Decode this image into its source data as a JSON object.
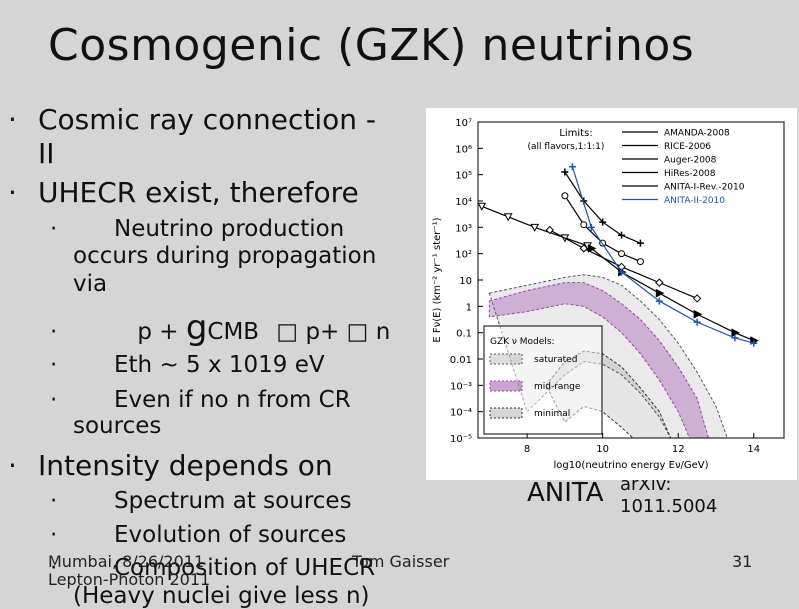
{
  "slide": {
    "title": "Cosmogenic (GZK) neutrinos",
    "bullets": [
      {
        "marker": "·",
        "text": "Cosmic ray connection -",
        "text_cont": "II"
      },
      {
        "marker": "·",
        "text": "UHECR exist, therefore"
      },
      {
        "marker": "·",
        "text": "Intensity depends on"
      }
    ],
    "sub_unhecr": [
      {
        "marker": "·",
        "text": "Neutrino production",
        "text_cont1": "occurs during propagation",
        "text_cont2": "via"
      },
      {
        "marker": "·",
        "text_a": "p + ",
        "text_big": "g",
        "text_b": "CMB",
        "text_c": "p+",
        "text_d": "n",
        "glyph": "□"
      },
      {
        "marker": "·",
        "text": "Eth ~ 5 x 1019 eV"
      },
      {
        "marker": "·",
        "text": "Even if no n from CR",
        "text_cont": "sources"
      }
    ],
    "sub_intensity": [
      {
        "marker": "·",
        "text": "Spectrum at sources"
      },
      {
        "marker": "·",
        "text": "Evolution of sources"
      },
      {
        "marker": "·",
        "text": "Composition of UHECR"
      },
      {
        "text": "(Heavy nuclei give less n)"
      }
    ],
    "footer": {
      "left_line1": "Mumbai, 8/26/2011",
      "left_line2": "Lepton-Photon 2011",
      "center": "Tom Gaisser",
      "page": "31"
    },
    "anita_label": "ANITA",
    "arxiv_line1": "arXiv:",
    "arxiv_line2": "1011.5004"
  },
  "chart_data": {
    "type": "line",
    "xlabel": "log10(neutrino energy Eν/GeV)",
    "ylabel": "E Fν(E)  (km⁻² yr⁻¹ ster⁻¹)",
    "xlim": [
      6.7,
      14.8
    ],
    "ylim_log10": [
      -5,
      7
    ],
    "x_ticks": [
      8,
      10,
      12,
      14
    ],
    "y_ticks": [
      "10⁻⁵",
      "10⁻⁴",
      "10⁻³",
      "0.01",
      "0.1",
      "1",
      "10",
      "10²",
      "10³",
      "10⁴",
      "10⁵",
      "10⁶",
      "10⁷"
    ],
    "limits_title": "Limits:",
    "limits_subtitle": "(all flavors,1:1:1)",
    "series": [
      {
        "name": "AMANDA-2008",
        "color": "#000000",
        "marker": "tri",
        "points": [
          [
            6.8,
            3.8
          ],
          [
            7.5,
            3.4
          ],
          [
            8.2,
            3.0
          ],
          [
            9.0,
            2.6
          ],
          [
            9.6,
            2.3
          ]
        ]
      },
      {
        "name": "RICE-2006",
        "color": "#000000",
        "marker": "circle",
        "points": [
          [
            9.0,
            4.2
          ],
          [
            9.5,
            3.1
          ],
          [
            10.0,
            2.4
          ],
          [
            10.5,
            2.0
          ],
          [
            11.0,
            1.7
          ]
        ]
      },
      {
        "name": "Auger-2008",
        "color": "#000000",
        "marker": "star",
        "points": [
          [
            9.0,
            5.1
          ],
          [
            9.5,
            4.0
          ],
          [
            10.0,
            3.2
          ],
          [
            10.5,
            2.7
          ],
          [
            11.0,
            2.4
          ]
        ]
      },
      {
        "name": "HiRes-2008",
        "color": "#000000",
        "marker": "diamond",
        "points": [
          [
            8.6,
            2.9
          ],
          [
            9.5,
            2.2
          ],
          [
            10.5,
            1.5
          ],
          [
            11.5,
            0.9
          ],
          [
            12.5,
            0.3
          ]
        ]
      },
      {
        "name": "ANITA-I-Rev.-2010",
        "color": "#000000",
        "marker": "filled-tri",
        "points": [
          [
            9.7,
            2.2
          ],
          [
            10.5,
            1.3
          ],
          [
            11.5,
            0.5
          ],
          [
            12.5,
            -0.3
          ],
          [
            13.5,
            -1.0
          ],
          [
            14.0,
            -1.3
          ]
        ]
      },
      {
        "name": "ANITA-II-2010",
        "color": "#2255aa",
        "marker": "star",
        "points": [
          [
            9.2,
            5.3
          ],
          [
            9.7,
            3.0
          ],
          [
            10.5,
            1.3
          ],
          [
            11.5,
            0.2
          ],
          [
            12.5,
            -0.6
          ],
          [
            13.5,
            -1.2
          ],
          [
            14.0,
            -1.4
          ]
        ]
      }
    ],
    "models_title": "GZK ν Models:",
    "models": [
      "saturated",
      "mid-range",
      "minimal"
    ],
    "bands": [
      {
        "name": "saturated",
        "color": "#555555",
        "upper": [
          [
            7,
            0.5
          ],
          [
            8,
            0.8
          ],
          [
            9,
            1.1
          ],
          [
            9.5,
            1.2
          ],
          [
            10,
            1.1
          ],
          [
            10.5,
            0.8
          ],
          [
            11,
            0.2
          ],
          [
            11.5,
            -0.5
          ],
          [
            12,
            -1.4
          ],
          [
            12.5,
            -2.5
          ],
          [
            13,
            -3.8
          ],
          [
            13.3,
            -5
          ]
        ],
        "lower": [
          [
            8,
            -4
          ],
          [
            9,
            -2.6
          ],
          [
            9.5,
            -2.1
          ],
          [
            10,
            -2.2
          ],
          [
            10.5,
            -2.6
          ],
          [
            11,
            -3.3
          ],
          [
            11.5,
            -4.2
          ],
          [
            11.8,
            -5
          ]
        ]
      },
      {
        "name": "mid-range",
        "color": "#9944aa",
        "upper": [
          [
            7,
            0.2
          ],
          [
            8,
            0.6
          ],
          [
            9,
            0.9
          ],
          [
            9.5,
            0.9
          ],
          [
            10,
            0.6
          ],
          [
            10.5,
            0.1
          ],
          [
            11,
            -0.5
          ],
          [
            11.5,
            -1.3
          ],
          [
            12,
            -2.3
          ],
          [
            12.5,
            -3.5
          ],
          [
            12.8,
            -5
          ]
        ],
        "lower": [
          [
            7,
            -0.4
          ],
          [
            8,
            -0.2
          ],
          [
            9,
            0.1
          ],
          [
            9.5,
            0.0
          ],
          [
            10,
            -0.4
          ],
          [
            10.5,
            -1.0
          ],
          [
            11,
            -1.8
          ],
          [
            11.5,
            -2.8
          ],
          [
            12,
            -4
          ],
          [
            12.3,
            -5
          ]
        ]
      },
      {
        "name": "minimal",
        "color": "#333333",
        "upper": [
          [
            8.5,
            -3
          ],
          [
            9,
            -2.1
          ],
          [
            9.5,
            -1.7
          ],
          [
            10,
            -1.8
          ],
          [
            10.5,
            -2.3
          ],
          [
            11,
            -3.1
          ],
          [
            11.5,
            -4
          ],
          [
            11.8,
            -5
          ]
        ],
        "lower": [
          [
            9,
            -4.4
          ],
          [
            9.5,
            -3.8
          ],
          [
            10,
            -4
          ],
          [
            10.5,
            -4.6
          ],
          [
            10.8,
            -5
          ]
        ]
      }
    ]
  }
}
